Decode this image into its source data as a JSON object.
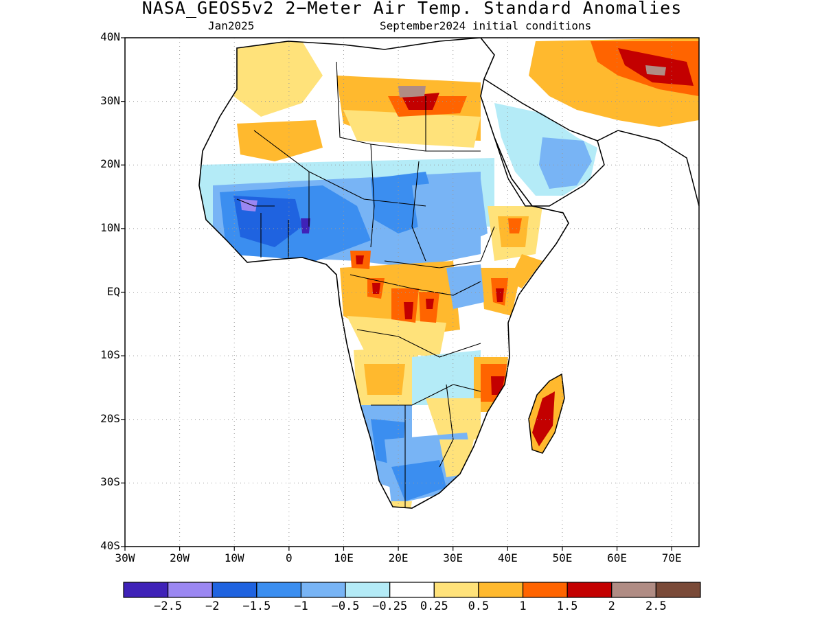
{
  "figure": {
    "title": "NASA_GEOS5v2 2−Meter Air Temp. Standard Anomalies",
    "subtitle_left": "Jan2025",
    "subtitle_right": "September2024 initial conditions"
  },
  "map": {
    "region": "Africa",
    "lat_range": [
      -40,
      40
    ],
    "lon_range": [
      -30,
      75
    ],
    "lat_ticks": [
      "40N",
      "30N",
      "20N",
      "10N",
      "EQ",
      "10S",
      "20S",
      "30S",
      "40S"
    ],
    "lon_ticks": [
      "30W",
      "20W",
      "10W",
      "0",
      "10E",
      "20E",
      "30E",
      "40E",
      "50E",
      "60E",
      "70E"
    ],
    "grid": "dotted"
  },
  "colorbar": {
    "colors": [
      "#3f22b8",
      "#9b87f2",
      "#1f63e0",
      "#3b8ef0",
      "#78b4f5",
      "#b4ebf7",
      "#ffffff",
      "#ffe27a",
      "#ffb92e",
      "#ff6400",
      "#c30000",
      "#b08c84",
      "#7a4a38"
    ],
    "labels": [
      "−2.5",
      "−2",
      "−1.5",
      "−1",
      "−0.5",
      "−0.25",
      "0.25",
      "0.5",
      "1",
      "1.5",
      "2",
      "2.5"
    ]
  },
  "anomaly_regions": [
    {
      "label": "sahel_cold",
      "color": "#78b4f5"
    },
    {
      "label": "west_africa_cold",
      "color": "#3b8ef0"
    },
    {
      "label": "central_africa_warm",
      "color": "#ffb92e"
    },
    {
      "label": "southern_africa_cold",
      "color": "#78b4f5"
    },
    {
      "label": "madagascar_warm",
      "color": "#c30000"
    },
    {
      "label": "iran_warm",
      "color": "#ff6400"
    },
    {
      "label": "libya_warm",
      "color": "#c30000"
    }
  ]
}
